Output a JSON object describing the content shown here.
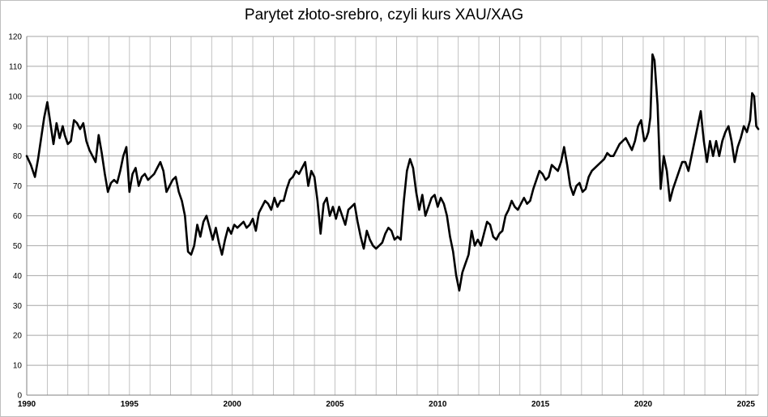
{
  "chart_data": {
    "type": "line",
    "title": "Parytet złoto-srebro, czyli kurs XAU/XAG",
    "xlabel": "",
    "ylabel": "",
    "xlim": [
      1990,
      2025.6
    ],
    "ylim": [
      0,
      120
    ],
    "grid": true,
    "legend": "none",
    "x_tick_labels": [
      "1990",
      "1995",
      "2000",
      "2005",
      "2010",
      "2015",
      "2020",
      "2025"
    ],
    "x_ticks": [
      1990,
      1995,
      2000,
      2005,
      2010,
      2015,
      2020,
      2025
    ],
    "y_ticks": [
      0,
      10,
      20,
      30,
      40,
      50,
      60,
      70,
      80,
      90,
      100,
      110,
      120
    ],
    "line_color": "#000000",
    "series": [
      {
        "x": [
          1990.0,
          1990.2,
          1990.4,
          1990.55,
          1990.7,
          1990.85,
          1991.0,
          1991.15,
          1991.3,
          1991.45,
          1991.6,
          1991.75,
          1991.85,
          1992.0,
          1992.15,
          1992.3,
          1992.45,
          1992.6,
          1992.75,
          1992.9,
          1993.05,
          1993.2,
          1993.35,
          1993.5,
          1993.65,
          1993.8,
          1993.95,
          1994.1,
          1994.25,
          1994.4,
          1994.55,
          1994.7,
          1994.85,
          1995.0,
          1995.15,
          1995.3,
          1995.45,
          1995.6,
          1995.75,
          1995.9,
          1996.05,
          1996.2,
          1996.35,
          1996.5,
          1996.65,
          1996.8,
          1996.95,
          1997.1,
          1997.25,
          1997.4,
          1997.55,
          1997.7,
          1997.85,
          1998.0,
          1998.15,
          1998.3,
          1998.45,
          1998.6,
          1998.75,
          1998.9,
          1999.05,
          1999.2,
          1999.35,
          1999.5,
          1999.65,
          1999.8,
          1999.95,
          2000.1,
          2000.25,
          2000.4,
          2000.55,
          2000.7,
          2000.85,
          2001.0,
          2001.15,
          2001.3,
          2001.45,
          2001.6,
          2001.75,
          2001.9,
          2002.05,
          2002.2,
          2002.35,
          2002.5,
          2002.65,
          2002.8,
          2002.95,
          2003.1,
          2003.25,
          2003.4,
          2003.55,
          2003.7,
          2003.85,
          2004.0,
          2004.15,
          2004.3,
          2004.45,
          2004.6,
          2004.75,
          2004.9,
          2005.05,
          2005.2,
          2005.35,
          2005.5,
          2005.65,
          2005.8,
          2005.95,
          2006.1,
          2006.25,
          2006.4,
          2006.55,
          2006.7,
          2006.85,
          2007.0,
          2007.15,
          2007.3,
          2007.45,
          2007.6,
          2007.75,
          2007.9,
          2008.05,
          2008.2,
          2008.35,
          2008.5,
          2008.65,
          2008.8,
          2008.95,
          2009.1,
          2009.25,
          2009.4,
          2009.55,
          2009.7,
          2009.85,
          2010.0,
          2010.15,
          2010.3,
          2010.45,
          2010.6,
          2010.75,
          2010.9,
          2011.05,
          2011.2,
          2011.35,
          2011.5,
          2011.65,
          2011.8,
          2011.95,
          2012.1,
          2012.25,
          2012.4,
          2012.55,
          2012.7,
          2012.85,
          2013.0,
          2013.15,
          2013.3,
          2013.45,
          2013.6,
          2013.75,
          2013.9,
          2014.05,
          2014.2,
          2014.35,
          2014.5,
          2014.65,
          2014.8,
          2014.95,
          2015.1,
          2015.25,
          2015.4,
          2015.55,
          2015.7,
          2015.85,
          2016.0,
          2016.15,
          2016.3,
          2016.45,
          2016.6,
          2016.75,
          2016.9,
          2017.05,
          2017.2,
          2017.35,
          2017.5,
          2017.65,
          2017.8,
          2017.95,
          2018.1,
          2018.25,
          2018.4,
          2018.55,
          2018.7,
          2018.85,
          2019.0,
          2019.15,
          2019.3,
          2019.45,
          2019.6,
          2019.75,
          2019.9,
          2020.05,
          2020.15,
          2020.25,
          2020.35,
          2020.45,
          2020.55,
          2020.7,
          2020.85,
          2021.0,
          2021.15,
          2021.3,
          2021.45,
          2021.6,
          2021.75,
          2021.9,
          2022.05,
          2022.2,
          2022.35,
          2022.5,
          2022.65,
          2022.8,
          2022.95,
          2023.1,
          2023.25,
          2023.4,
          2023.55,
          2023.7,
          2023.85,
          2024.0,
          2024.15,
          2024.3,
          2024.45,
          2024.6,
          2024.75,
          2024.9,
          2025.05,
          2025.2,
          2025.3,
          2025.4,
          2025.5,
          2025.6
        ],
        "y": [
          80,
          77,
          73,
          79,
          86,
          93,
          98,
          91,
          84,
          91,
          86,
          90,
          87,
          84,
          85,
          92,
          91,
          89,
          91,
          85,
          82,
          80,
          78,
          87,
          81,
          74,
          68,
          71,
          72,
          71,
          75,
          80,
          83,
          68,
          74,
          76,
          70,
          73,
          74,
          72,
          73,
          74,
          76,
          78,
          75,
          68,
          70,
          72,
          73,
          68,
          65,
          60,
          48,
          47,
          50,
          57,
          53,
          58,
          60,
          56,
          52,
          56,
          51,
          47,
          52,
          56,
          54,
          57,
          56,
          57,
          58,
          56,
          57,
          59,
          55,
          61,
          63,
          65,
          64,
          62,
          66,
          63,
          65,
          65,
          69,
          72,
          73,
          75,
          74,
          76,
          78,
          70,
          75,
          73,
          65,
          54,
          64,
          66,
          60,
          63,
          59,
          63,
          60,
          57,
          62,
          63,
          64,
          58,
          53,
          49,
          55,
          52,
          50,
          49,
          50,
          51,
          54,
          56,
          55,
          52,
          53,
          52,
          65,
          75,
          79,
          76,
          68,
          62,
          67,
          60,
          63,
          66,
          67,
          63,
          66,
          64,
          60,
          53,
          48,
          40,
          35,
          41,
          44,
          47,
          55,
          50,
          52,
          50,
          54,
          58,
          57,
          53,
          52,
          54,
          55,
          60,
          62,
          65,
          63,
          62,
          64,
          66,
          64,
          65,
          69,
          72,
          75,
          74,
          72,
          73,
          77,
          76,
          75,
          78,
          83,
          77,
          70,
          67,
          70,
          71,
          68,
          69,
          73,
          75,
          76,
          77,
          78,
          79,
          81,
          80,
          80,
          82,
          84,
          85,
          86,
          84,
          82,
          85,
          90,
          92,
          85,
          86,
          88,
          93,
          114,
          112,
          97,
          69,
          80,
          75,
          65,
          69,
          72,
          75,
          78,
          78,
          75,
          80,
          85,
          90,
          95,
          85,
          78,
          85,
          80,
          85,
          80,
          85,
          88,
          90,
          85,
          78,
          83,
          86,
          90,
          88,
          92,
          101,
          100,
          90,
          89
        ],
        "name": ""
      }
    ]
  }
}
